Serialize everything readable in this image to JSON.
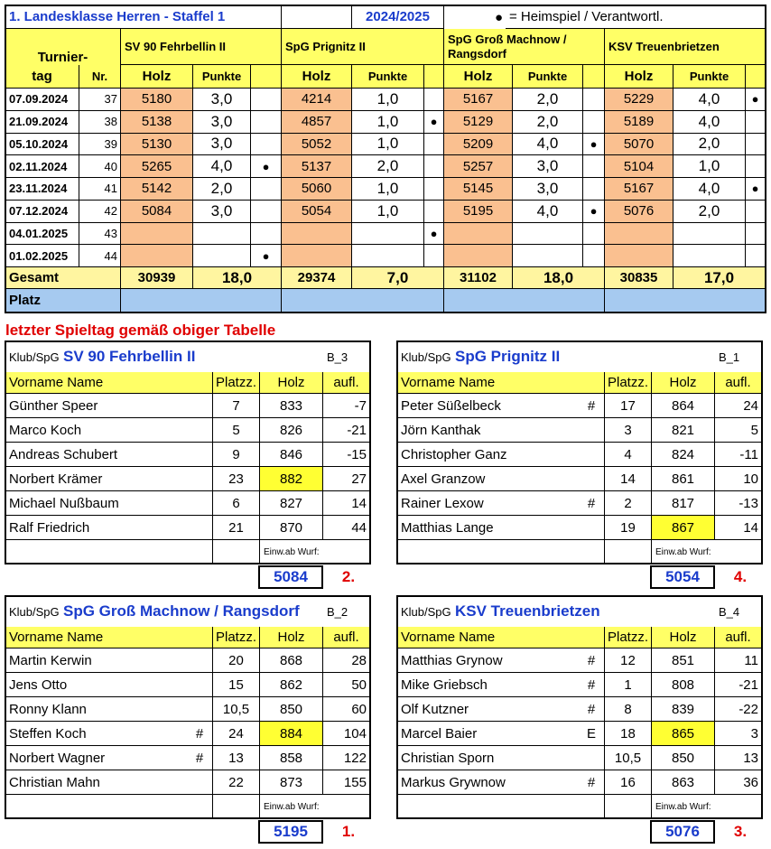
{
  "schedule": {
    "title": "1. Landesklasse Herren - Staffel 1",
    "season": "2024/2025",
    "legend_symbol": "●",
    "legend": "= Heimspiel / Verantwortl.",
    "col_turnier": "Turnier-",
    "col_tag": "tag",
    "col_nr": "Nr.",
    "col_holz": "Holz",
    "col_punkte": "Punkte",
    "teams": [
      "SV 90 Fehrbellin II",
      "SpG Prignitz II",
      "SpG Groß Machnow / Rangsdorf",
      "KSV Treuenbrietzen"
    ],
    "rows": [
      {
        "date": "07.09.2024",
        "nr": 37,
        "teams": [
          [
            5180,
            "3,0",
            null
          ],
          [
            4214,
            "1,0",
            null
          ],
          [
            5167,
            "2,0",
            null
          ],
          [
            5229,
            "4,0",
            "●"
          ]
        ]
      },
      {
        "date": "21.09.2024",
        "nr": 38,
        "teams": [
          [
            5138,
            "3,0",
            null
          ],
          [
            4857,
            "1,0",
            "●"
          ],
          [
            5129,
            "2,0",
            null
          ],
          [
            5189,
            "4,0",
            null
          ]
        ]
      },
      {
        "date": "05.10.2024",
        "nr": 39,
        "teams": [
          [
            5130,
            "3,0",
            null
          ],
          [
            5052,
            "1,0",
            null
          ],
          [
            5209,
            "4,0",
            "●"
          ],
          [
            5070,
            "2,0",
            null
          ]
        ]
      },
      {
        "date": "02.11.2024",
        "nr": 40,
        "teams": [
          [
            5265,
            "4,0",
            "●"
          ],
          [
            5137,
            "2,0",
            null
          ],
          [
            5257,
            "3,0",
            null
          ],
          [
            5104,
            "1,0",
            null
          ]
        ]
      },
      {
        "date": "23.11.2024",
        "nr": 41,
        "teams": [
          [
            5142,
            "2,0",
            null
          ],
          [
            5060,
            "1,0",
            null
          ],
          [
            5145,
            "3,0",
            null
          ],
          [
            5167,
            "4,0",
            "●"
          ]
        ]
      },
      {
        "date": "07.12.2024",
        "nr": 42,
        "teams": [
          [
            5084,
            "3,0",
            null
          ],
          [
            5054,
            "1,0",
            null
          ],
          [
            5195,
            "4,0",
            "●"
          ],
          [
            5076,
            "2,0",
            null
          ]
        ]
      },
      {
        "date": "04.01.2025",
        "nr": 43,
        "teams": [
          [
            null,
            null,
            null
          ],
          [
            null,
            null,
            "●"
          ],
          [
            null,
            null,
            null
          ],
          [
            null,
            null,
            null
          ]
        ]
      },
      {
        "date": "01.02.2025",
        "nr": 44,
        "teams": [
          [
            null,
            null,
            "●"
          ],
          [
            null,
            null,
            null
          ],
          [
            null,
            null,
            null
          ],
          [
            null,
            null,
            null
          ]
        ]
      }
    ],
    "total_label": "Gesamt",
    "totals": [
      [
        30939,
        "18,0"
      ],
      [
        29374,
        "7,0"
      ],
      [
        31102,
        "18,0"
      ],
      [
        30835,
        "17,0"
      ]
    ],
    "place_label": "Platz"
  },
  "note": "letzter Spieltag gemäß obiger Tabelle",
  "cards": [
    {
      "club_label": "Klub/SpG",
      "name": "SV 90 Fehrbellin II",
      "code": "B_3",
      "headers": [
        "Vorname Name",
        "Platzz.",
        "Holz",
        "aufl."
      ],
      "players": [
        [
          "Günther Speer",
          null,
          7,
          833,
          -7
        ],
        [
          "Marco Koch",
          null,
          5,
          826,
          -21
        ],
        [
          "Andreas Schubert",
          null,
          9,
          846,
          -15
        ],
        [
          "Norbert Krämer",
          null,
          23,
          882,
          27
        ],
        [
          "Michael Nußbaum",
          null,
          6,
          827,
          14
        ],
        [
          "Ralf Friedrich",
          null,
          21,
          870,
          44
        ]
      ],
      "highlight": 3,
      "footer": "Einw.ab Wurf:",
      "total": 5084,
      "rank": "2."
    },
    {
      "club_label": "Klub/SpG",
      "name": "SpG Prignitz II",
      "code": "B_1",
      "headers": [
        "Vorname Name",
        "Platzz.",
        "Holz",
        "aufl."
      ],
      "players": [
        [
          "Peter Süßelbeck",
          "#",
          17,
          864,
          24
        ],
        [
          "Jörn Kanthak",
          null,
          3,
          821,
          5
        ],
        [
          "Christopher Ganz",
          null,
          4,
          824,
          -11
        ],
        [
          "Axel Granzow",
          null,
          14,
          861,
          10
        ],
        [
          "Rainer Lexow",
          "#",
          2,
          817,
          -13
        ],
        [
          "Matthias Lange",
          null,
          19,
          867,
          14
        ]
      ],
      "highlight": 5,
      "footer": "Einw.ab Wurf:",
      "total": 5054,
      "rank": "4."
    },
    {
      "club_label": "Klub/SpG",
      "name": "SpG Groß Machnow / Rangsdorf",
      "code": "B_2",
      "headers": [
        "Vorname Name",
        "Platzz.",
        "Holz",
        "aufl."
      ],
      "players": [
        [
          "Martin Kerwin",
          null,
          20,
          868,
          28
        ],
        [
          "Jens Otto",
          null,
          15,
          862,
          50
        ],
        [
          "Ronny Klann",
          null,
          "10,5",
          850,
          60
        ],
        [
          "Steffen Koch",
          "#",
          24,
          884,
          104
        ],
        [
          "Norbert Wagner",
          "#",
          13,
          858,
          122
        ],
        [
          "Christian Mahn",
          null,
          22,
          873,
          155
        ]
      ],
      "highlight": 3,
      "footer": "Einw.ab Wurf:",
      "total": 5195,
      "rank": "1."
    },
    {
      "club_label": "Klub/SpG",
      "name": "KSV Treuenbrietzen",
      "code": "B_4",
      "headers": [
        "Vorname Name",
        "Platzz.",
        "Holz",
        "aufl."
      ],
      "players": [
        [
          "Matthias Grynow",
          "#",
          12,
          851,
          11
        ],
        [
          "Mike Griebsch",
          "#",
          1,
          808,
          -21
        ],
        [
          "Olf Kutzner",
          "#",
          8,
          839,
          -22
        ],
        [
          "Marcel Baier",
          "E",
          18,
          865,
          3
        ],
        [
          "Christian Sporn",
          null,
          "10,5",
          850,
          13
        ],
        [
          "Markus Grywnow",
          "#",
          16,
          863,
          36
        ]
      ],
      "highlight": 3,
      "footer": "Einw.ab Wurf:",
      "total": 5076,
      "rank": "3."
    }
  ]
}
